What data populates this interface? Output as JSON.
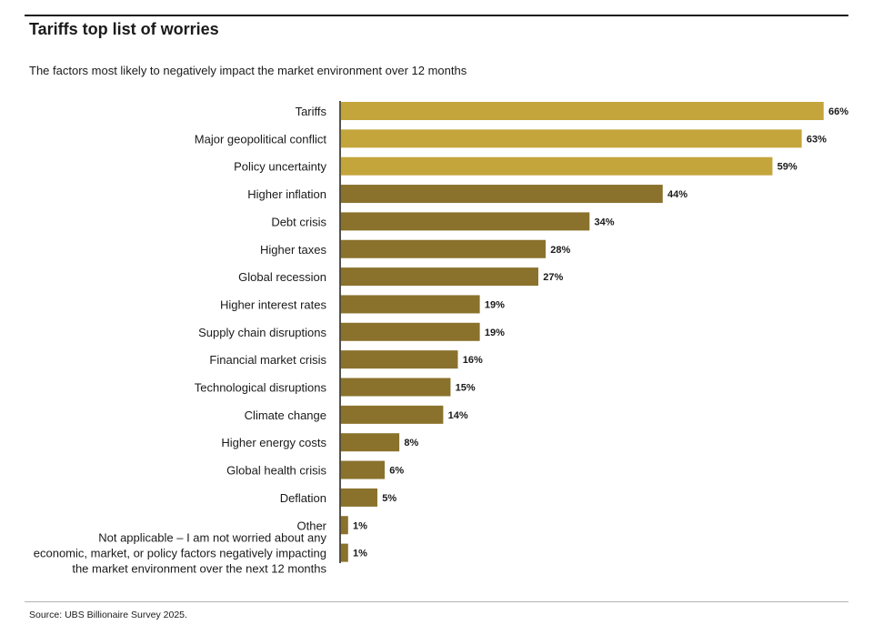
{
  "title": "Tariffs top list of worries",
  "subtitle": "The factors most likely to negatively impact the market environment over 12 months",
  "source": "Source: UBS Billionaire Survey 2025.",
  "colors": {
    "top3": "#c4a53b",
    "rest": "#8a722c",
    "axis": "#1a1a1a",
    "text": "#1a1a1a"
  },
  "chart_data": {
    "type": "bar",
    "orientation": "horizontal",
    "categories": [
      "Tariffs",
      "Major geopolitical conflict",
      "Policy uncertainty",
      "Higher inflation",
      "Debt crisis",
      "Higher taxes",
      "Global recession",
      "Higher interest rates",
      "Supply chain disruptions",
      "Financial market crisis",
      "Technological disruptions",
      "Climate change",
      "Higher energy costs",
      "Global health crisis",
      "Deflation",
      "Other",
      "Not applicable – I am not worried about any economic, market, or policy factors negatively impacting the market environment over the next 12 months"
    ],
    "category_lines": [
      [
        "Tariffs"
      ],
      [
        "Major geopolitical conflict"
      ],
      [
        "Policy uncertainty"
      ],
      [
        "Higher inflation"
      ],
      [
        "Debt crisis"
      ],
      [
        "Higher taxes"
      ],
      [
        "Global recession"
      ],
      [
        "Higher interest rates"
      ],
      [
        "Supply chain disruptions"
      ],
      [
        "Financial market crisis"
      ],
      [
        "Technological disruptions"
      ],
      [
        "Climate change"
      ],
      [
        "Higher energy costs"
      ],
      [
        "Global health crisis"
      ],
      [
        "Deflation"
      ],
      [
        "Other"
      ],
      [
        "Not applicable – I am not worried about any",
        "economic, market, or policy factors negatively impacting",
        "the market environment over the next 12 months"
      ]
    ],
    "values": [
      66,
      63,
      59,
      44,
      34,
      28,
      27,
      19,
      19,
      16,
      15,
      14,
      8,
      6,
      5,
      1,
      1
    ],
    "value_labels": [
      "66%",
      "63%",
      "59%",
      "44%",
      "34%",
      "28%",
      "27%",
      "19%",
      "19%",
      "16%",
      "15%",
      "14%",
      "8%",
      "6%",
      "5%",
      "1%",
      "1%"
    ],
    "highlighted_count": 3,
    "xlim": [
      0,
      66
    ],
    "grid": false,
    "legend": "none"
  }
}
